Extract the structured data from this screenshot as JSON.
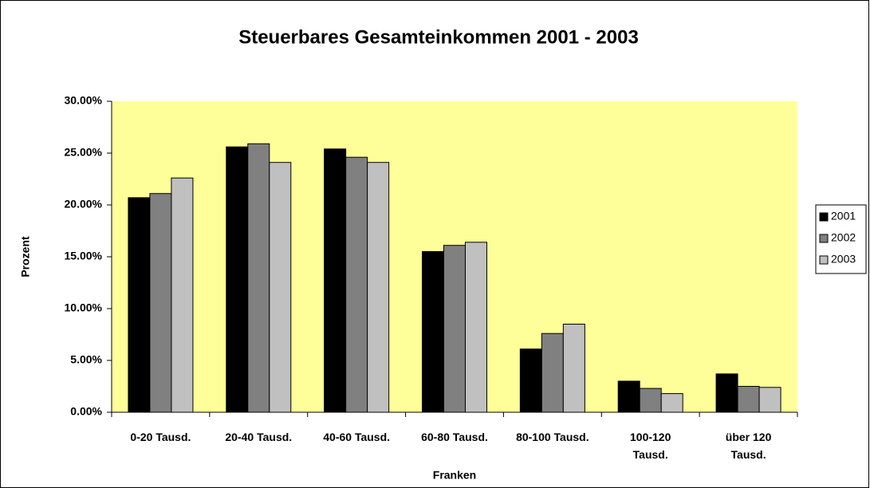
{
  "chart_data": {
    "type": "bar",
    "title": "Steuerbares Gesamteinkommen 2001 - 2003",
    "x_label": "Franken",
    "y_label": "Prozent",
    "categories": [
      "0-20 Tausd.",
      "20-40 Tausd.",
      "40-60 Tausd.",
      "60-80 Tausd.",
      "80-100 Tausd.",
      "100-120 Tausd.",
      "über 120 Tausd."
    ],
    "series": [
      {
        "name": "2001",
        "color": "#000000",
        "values": [
          20.7,
          25.6,
          25.4,
          15.5,
          6.1,
          3.0,
          3.7
        ]
      },
      {
        "name": "2002",
        "color": "#808080",
        "values": [
          21.1,
          25.9,
          24.6,
          16.1,
          7.6,
          2.3,
          2.5
        ]
      },
      {
        "name": "2003",
        "color": "#c0c0c0",
        "values": [
          22.6,
          24.1,
          24.1,
          16.4,
          8.5,
          1.8,
          2.4
        ]
      }
    ],
    "ylim": [
      0,
      30
    ],
    "yticks": [
      {
        "value": 0,
        "label": "0.00%"
      },
      {
        "value": 5,
        "label": "5.00%"
      },
      {
        "value": 10,
        "label": "10.00%"
      },
      {
        "value": 15,
        "label": "15.00%"
      },
      {
        "value": 20,
        "label": "20.00%"
      },
      {
        "value": 25,
        "label": "25.00%"
      },
      {
        "value": 30,
        "label": "30.00%"
      }
    ],
    "plot_background": "#ffff99",
    "legend": "right"
  }
}
